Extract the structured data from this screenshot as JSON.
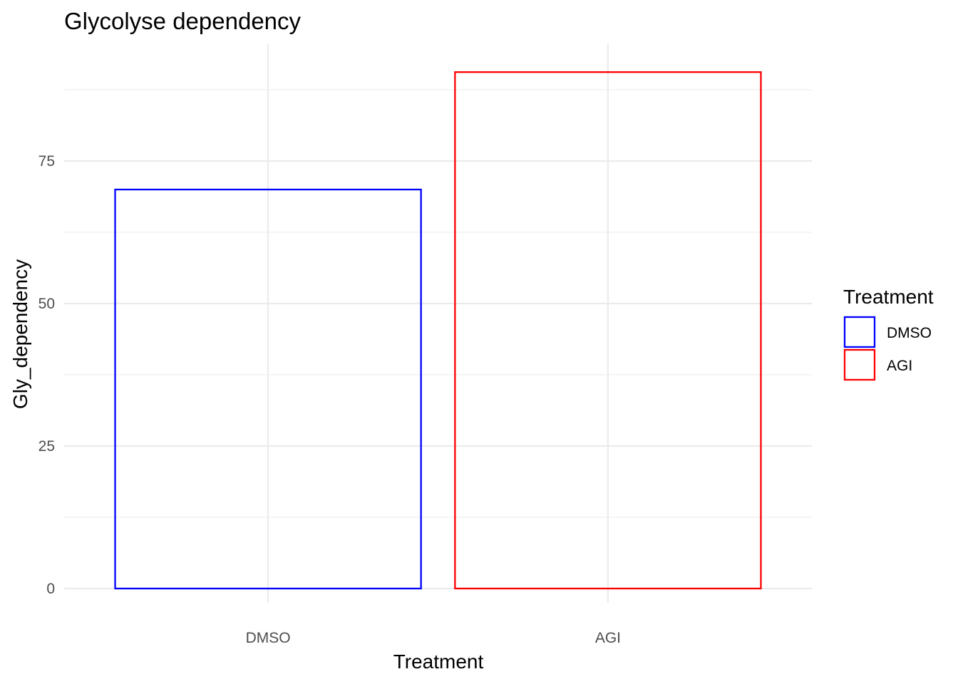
{
  "chart_data": {
    "type": "bar",
    "title": "Glycolyse dependency",
    "xlabel": "Treatment",
    "ylabel": "Gly_dependency",
    "categories": [
      "DMSO",
      "AGI"
    ],
    "values": [
      70,
      90.6
    ],
    "colors": [
      "#0000ff",
      "#ff0000"
    ],
    "fill": "none",
    "ylim": [
      -2.5,
      95.5
    ],
    "yticks": [
      0,
      25,
      50,
      75
    ],
    "grid": true,
    "legend": {
      "title": "Treatment",
      "position": "right",
      "entries": [
        {
          "label": "DMSO",
          "color": "#0000ff"
        },
        {
          "label": "AGI",
          "color": "#ff0000"
        }
      ]
    }
  }
}
